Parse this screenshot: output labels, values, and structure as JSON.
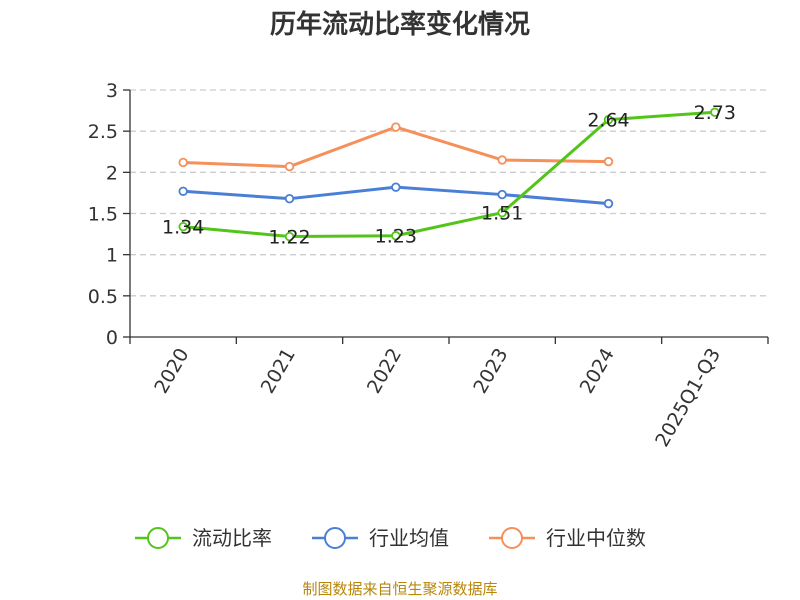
{
  "chart_data": {
    "type": "line",
    "title": "历年流动比率变化情况",
    "categories": [
      "2020",
      "2021",
      "2022",
      "2023",
      "2024",
      "2025Q1-Q3"
    ],
    "yticks": [
      "0",
      "0.5",
      "1",
      "1.5",
      "2",
      "2.5",
      "3"
    ],
    "ylim": [
      0,
      3
    ],
    "grid": true,
    "legend_position": "bottom",
    "series": [
      {
        "name": "流动比率",
        "color": "#52c41a",
        "values": [
          1.34,
          1.22,
          1.23,
          1.51,
          2.64,
          2.73
        ],
        "labels": [
          "1.34",
          "1.22",
          "1.23",
          "1.51",
          "2.64",
          "2.73"
        ]
      },
      {
        "name": "行业均值",
        "color": "#4a7fd6",
        "values": [
          1.77,
          1.68,
          1.82,
          1.73,
          1.62,
          null
        ]
      },
      {
        "name": "行业中位数",
        "color": "#f5905a",
        "values": [
          2.12,
          2.07,
          2.55,
          2.15,
          2.13,
          null
        ]
      }
    ],
    "source": "制图数据来自恒生聚源数据库"
  }
}
